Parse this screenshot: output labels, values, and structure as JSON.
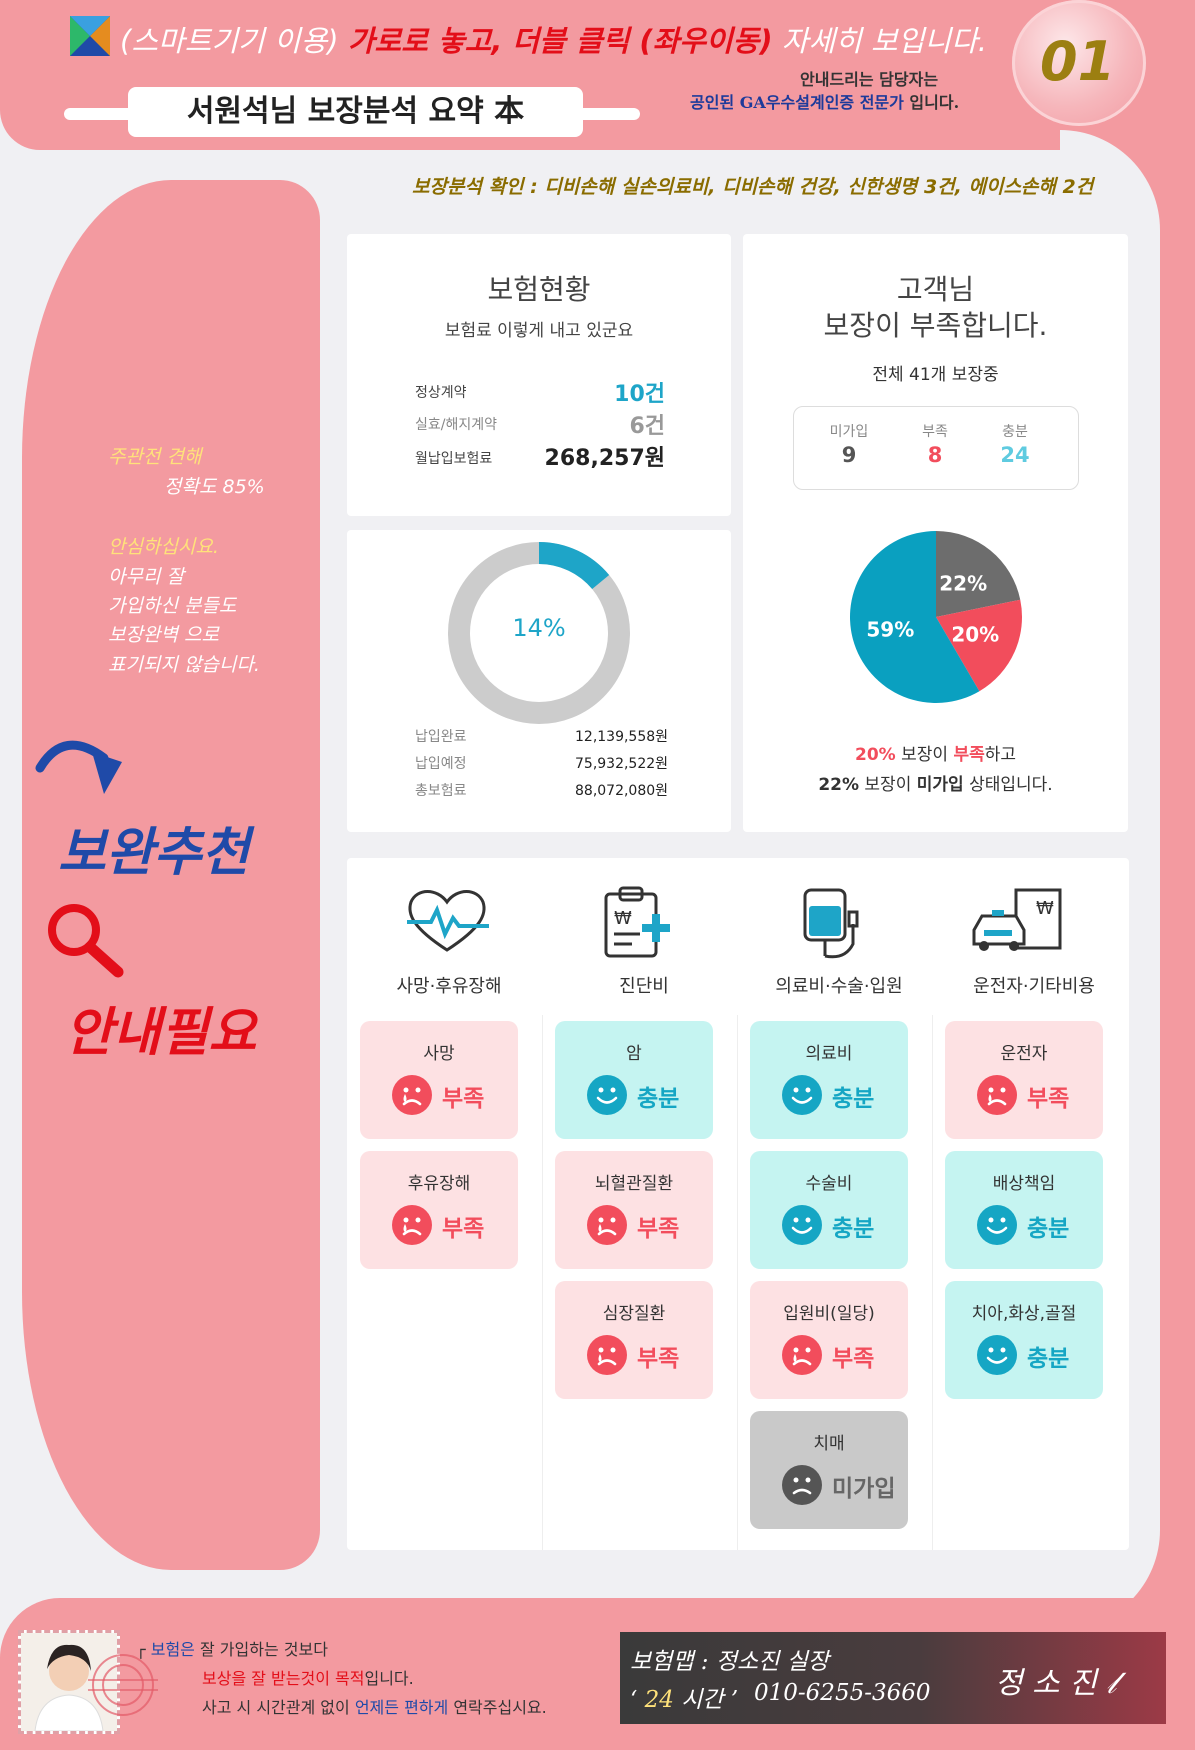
{
  "header": {
    "headline_prefix": "(스마트기기 이용)",
    "headline_red": "가로로 놓고, 더블 클릭 (좌우이동)",
    "headline_suffix": "자세히 보입니다.",
    "title": "서원석님 보장분석 요약 本",
    "page_number": "01",
    "guide_line1": "안내드리는 담당자는",
    "guide_line2_blue": "공인된 GA우수설계인증 전문가",
    "guide_line2_rest": " 입니다."
  },
  "analysis_note": "보장분석 확인 : 디비손해 실손의료비, 디비손해 건강, 신한생명 3건, 에이스손해 2건",
  "sidebar": {
    "opinion_label": "주관전 견해",
    "accuracy": "정확도 85%",
    "reassure": "안심하십시요.",
    "lines": [
      "아무리 잘",
      "가입하신 분들도",
      "보장완벽 으로",
      "표기되지 않습니다."
    ],
    "recommend": "보완추천",
    "guide_needed": "안내필요"
  },
  "insurance_status": {
    "title": "보험현황",
    "subtitle": "보험료 이렇게 내고 있군요",
    "rows": [
      {
        "label": "정상계약",
        "value": "10건"
      },
      {
        "label": "실효/해지계약",
        "value": "6건"
      },
      {
        "label": "월납입보험료",
        "value": "268,257원"
      }
    ]
  },
  "payment": {
    "percent_label": "14%",
    "paid_ratio": 0.14,
    "rows": [
      {
        "label": "납입완료",
        "value": "12,139,558원"
      },
      {
        "label": "납입예정",
        "value": "75,932,522원"
      },
      {
        "label": "총보험료",
        "value": "88,072,080원"
      }
    ],
    "colors": {
      "paid": "#1ea5c8",
      "remain": "#cccccc"
    }
  },
  "coverage": {
    "title_line1": "고객님",
    "title_line2": "보장이 부족합니다.",
    "total": "전체 41개 보장중",
    "stats": [
      {
        "label": "미가입",
        "value": "9"
      },
      {
        "label": "부족",
        "value": "8"
      },
      {
        "label": "충분",
        "value": "24"
      }
    ],
    "summary1_pct": "20%",
    "summary1_mid": " 보장이 ",
    "summary1_key": "부족",
    "summary1_end": "하고",
    "summary2_pct": "22%",
    "summary2_mid": " 보장이 ",
    "summary2_key": "미가입",
    "summary2_end": " 상태입니다."
  },
  "chart_data": {
    "type": "pie",
    "categories": [
      "충분",
      "미가입",
      "부족"
    ],
    "values": [
      59,
      22,
      20
    ],
    "labels": [
      "59%",
      "22%",
      "20%"
    ],
    "colors": [
      "#0aa0c0",
      "#6d6d6d",
      "#f24d5c"
    ]
  },
  "categories": [
    {
      "name": "사망·후유장해",
      "icon": "heart-pulse-icon",
      "items": [
        {
          "name": "사망",
          "status": "부족",
          "kind": "short"
        },
        {
          "name": "후유장해",
          "status": "부족",
          "kind": "short"
        }
      ]
    },
    {
      "name": "진단비",
      "icon": "clipboard-plus-icon",
      "items": [
        {
          "name": "암",
          "status": "충분",
          "kind": "enough"
        },
        {
          "name": "뇌혈관질환",
          "status": "부족",
          "kind": "short"
        },
        {
          "name": "심장질환",
          "status": "부족",
          "kind": "short"
        }
      ]
    },
    {
      "name": "의료비·수술·입원",
      "icon": "iv-bag-icon",
      "items": [
        {
          "name": "의료비",
          "status": "충분",
          "kind": "enough"
        },
        {
          "name": "수술비",
          "status": "충분",
          "kind": "enough"
        },
        {
          "name": "입원비(일당)",
          "status": "부족",
          "kind": "short"
        },
        {
          "name": "치매",
          "status": "미가입",
          "kind": "none"
        }
      ]
    },
    {
      "name": "운전자·기타비용",
      "icon": "car-document-icon",
      "items": [
        {
          "name": "운전자",
          "status": "부족",
          "kind": "short"
        },
        {
          "name": "배상책임",
          "status": "충분",
          "kind": "enough"
        },
        {
          "name": "치아,화상,골절",
          "status": "충분",
          "kind": "enough"
        }
      ]
    }
  ],
  "footer": {
    "line1_mark": "┌ ",
    "line1_blue": "보험은",
    "line1_rest": " 잘 가입하는 것보다",
    "line2_red": "보상을 잘 받는것이 목적",
    "line2_rest": "입니다.",
    "line3_a": "사고 시 시간관계 없이 ",
    "line3_blue": "언제든 편하게",
    "line3_b": " 연락주십시요.",
    "name_line": "보험맵 : 정소진 실장",
    "hours_open": "‘ ",
    "hours_yellow": "24",
    "hours_rest": " 시간 ’",
    "phone": "010-6255-3660",
    "signature": "정 소 진 𝓁"
  }
}
